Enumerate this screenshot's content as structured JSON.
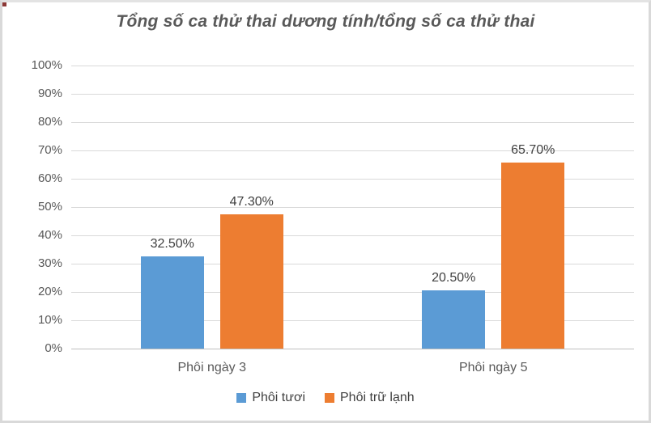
{
  "chart_data": {
    "type": "bar",
    "title": "Tổng số ca thử thai dương tính/tổng số ca thử thai",
    "categories": [
      "Phôi ngày 3",
      "Phôi ngày 5"
    ],
    "series": [
      {
        "name": "Phôi tươi",
        "color": "#5B9BD5",
        "values": [
          32.5,
          20.5
        ],
        "labels": [
          "32.50%",
          "20.50%"
        ]
      },
      {
        "name": "Phôi trữ lạnh",
        "color": "#ED7D31",
        "values": [
          47.3,
          65.7
        ],
        "labels": [
          "47.30%",
          "65.70%"
        ]
      }
    ],
    "xlabel": "",
    "ylabel": "",
    "ylim": [
      0,
      100
    ],
    "y_tick_step": 10,
    "y_tick_labels": [
      "0%",
      "10%",
      "20%",
      "30%",
      "40%",
      "50%",
      "60%",
      "70%",
      "80%",
      "90%",
      "100%"
    ],
    "grid": true,
    "legend_position": "bottom"
  },
  "frame": {
    "background": "#FFFFFF",
    "border_color": "#D9D9D9",
    "title_color": "#595959",
    "tick_label_color": "#595959",
    "data_label_color": "#404040",
    "gridline_color": "#D9D9D9"
  }
}
